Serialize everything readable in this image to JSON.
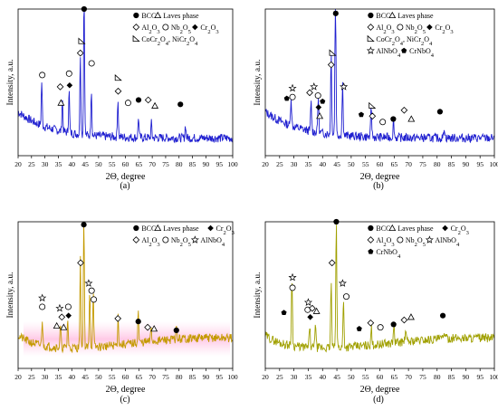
{
  "chart_data": [
    {
      "type": "line",
      "panel_label": "(a)",
      "color": "#1f1fd0",
      "xlabel": "2Θ, degree",
      "ylabel": "Intensity, a.u.",
      "xlim": [
        20,
        100
      ],
      "xticks": [
        20,
        25,
        30,
        35,
        40,
        45,
        50,
        55,
        60,
        65,
        70,
        75,
        80,
        85,
        90,
        95,
        100
      ],
      "ylim": [
        0,
        1
      ],
      "peaks": [
        [
          28.8,
          0.3
        ],
        [
          36.5,
          0.22
        ],
        [
          39.0,
          0.3
        ],
        [
          43.2,
          0.55
        ],
        [
          44.6,
          1.0
        ],
        [
          47.3,
          0.32
        ],
        [
          57.2,
          0.26
        ],
        [
          64.9,
          0.14
        ],
        [
          69.7,
          0.1
        ],
        [
          82.4,
          0.09
        ]
      ],
      "markers": [
        {
          "x": 44.6,
          "y": 1.0,
          "sym": "BCC"
        },
        {
          "x": 29.0,
          "y": 0.55,
          "sym": "Nb2O5"
        },
        {
          "x": 36.0,
          "y": 0.36,
          "sym": "Laves"
        },
        {
          "x": 35.7,
          "y": 0.47,
          "sym": "Al2O3"
        },
        {
          "x": 39.2,
          "y": 0.48,
          "sym": "Cr2O3"
        },
        {
          "x": 39.0,
          "y": 0.56,
          "sym": "Nb2O5"
        },
        {
          "x": 43.2,
          "y": 0.7,
          "sym": "Al2O3"
        },
        {
          "x": 43.7,
          "y": 0.78,
          "sym": "CoCr"
        },
        {
          "x": 47.4,
          "y": 0.63,
          "sym": "Nb2O5"
        },
        {
          "x": 57.3,
          "y": 0.53,
          "sym": "CoCr"
        },
        {
          "x": 57.3,
          "y": 0.44,
          "sym": "Al2O3"
        },
        {
          "x": 61.0,
          "y": 0.36,
          "sym": "Nb2O5"
        },
        {
          "x": 64.9,
          "y": 0.38,
          "sym": "BCC"
        },
        {
          "x": 68.5,
          "y": 0.38,
          "sym": "Al2O3"
        },
        {
          "x": 71.0,
          "y": 0.34,
          "sym": "Laves"
        },
        {
          "x": 80.5,
          "y": 0.35,
          "sym": "BCC"
        }
      ]
    },
    {
      "type": "line",
      "panel_label": "(b)",
      "color": "#1f1fd0",
      "xlabel": "2Θ, degree",
      "ylabel": "Intensity, a.u.",
      "xlim": [
        20,
        100
      ],
      "xticks": [
        20,
        25,
        30,
        35,
        40,
        45,
        50,
        55,
        60,
        65,
        70,
        75,
        80,
        85,
        90,
        95,
        100
      ],
      "ylim": [
        0,
        1
      ],
      "peaks": [
        [
          29.0,
          0.2
        ],
        [
          36.0,
          0.2
        ],
        [
          38.5,
          0.25
        ],
        [
          43.0,
          0.55
        ],
        [
          44.5,
          0.98
        ],
        [
          47.0,
          0.35
        ],
        [
          57.0,
          0.2
        ],
        [
          64.8,
          0.12
        ],
        [
          82.5,
          0.08
        ]
      ],
      "markers": [
        {
          "x": 44.6,
          "y": 0.97,
          "sym": "BCC"
        },
        {
          "x": 43.0,
          "y": 0.62,
          "sym": "Al2O3"
        },
        {
          "x": 43.5,
          "y": 0.7,
          "sym": "CoCr"
        },
        {
          "x": 47.4,
          "y": 0.47,
          "sym": "AlNbO4"
        },
        {
          "x": 29.5,
          "y": 0.46,
          "sym": "AlNbO4"
        },
        {
          "x": 29.5,
          "y": 0.4,
          "sym": "Nb2O5"
        },
        {
          "x": 27.5,
          "y": 0.39,
          "sym": "CrNbO4"
        },
        {
          "x": 35.5,
          "y": 0.43,
          "sym": "Al2O3"
        },
        {
          "x": 37.0,
          "y": 0.47,
          "sym": "AlNbO4"
        },
        {
          "x": 38.4,
          "y": 0.41,
          "sym": "Nb2O5"
        },
        {
          "x": 38.6,
          "y": 0.33,
          "sym": "Cr2O3"
        },
        {
          "x": 40.0,
          "y": 0.37,
          "sym": "CrNbO4"
        },
        {
          "x": 39.0,
          "y": 0.27,
          "sym": "Laves"
        },
        {
          "x": 53.5,
          "y": 0.28,
          "sym": "CrNbO4"
        },
        {
          "x": 57.3,
          "y": 0.34,
          "sym": "CoCr"
        },
        {
          "x": 57.4,
          "y": 0.27,
          "sym": "Al2O3"
        },
        {
          "x": 61.0,
          "y": 0.23,
          "sym": "Nb2O5"
        },
        {
          "x": 64.7,
          "y": 0.25,
          "sym": "BCC"
        },
        {
          "x": 68.5,
          "y": 0.31,
          "sym": "Al2O3"
        },
        {
          "x": 71.0,
          "y": 0.25,
          "sym": "Laves"
        },
        {
          "x": 81.0,
          "y": 0.3,
          "sym": "BCC"
        }
      ]
    },
    {
      "type": "line",
      "panel_label": "(c)",
      "color": "#c49a00",
      "xlabel": "2Θ, degree",
      "ylabel": "Intensity, a.u.",
      "xlim": [
        20,
        100
      ],
      "xticks": [
        20,
        25,
        30,
        35,
        40,
        45,
        50,
        55,
        60,
        65,
        70,
        75,
        80,
        85,
        90,
        95,
        100
      ],
      "ylim": [
        0,
        1
      ],
      "peaks": [
        [
          29.0,
          0.18
        ],
        [
          35.8,
          0.15
        ],
        [
          38.5,
          0.2
        ],
        [
          43.2,
          0.6
        ],
        [
          44.5,
          0.98
        ],
        [
          46.7,
          0.4
        ],
        [
          48.0,
          0.38
        ],
        [
          57.3,
          0.2
        ],
        [
          64.8,
          0.22
        ],
        [
          69.6,
          0.1
        ],
        [
          79.0,
          0.08
        ]
      ],
      "markers": [
        {
          "x": 44.5,
          "y": 0.98,
          "sym": "BCC"
        },
        {
          "x": 43.3,
          "y": 0.72,
          "sym": "Al2O3"
        },
        {
          "x": 46.3,
          "y": 0.58,
          "sym": "AlNbO4"
        },
        {
          "x": 47.4,
          "y": 0.53,
          "sym": "Nb2O5"
        },
        {
          "x": 48.2,
          "y": 0.47,
          "sym": "Nb2O5"
        },
        {
          "x": 29.0,
          "y": 0.48,
          "sym": "AlNbO4"
        },
        {
          "x": 29.0,
          "y": 0.42,
          "sym": "Nb2O5"
        },
        {
          "x": 35.5,
          "y": 0.41,
          "sym": "AlNbO4"
        },
        {
          "x": 36.3,
          "y": 0.35,
          "sym": "Al2O3"
        },
        {
          "x": 38.7,
          "y": 0.42,
          "sym": "Nb2O5"
        },
        {
          "x": 38.8,
          "y": 0.36,
          "sym": "Cr2O3"
        },
        {
          "x": 34.4,
          "y": 0.29,
          "sym": "Laves"
        },
        {
          "x": 37.0,
          "y": 0.28,
          "sym": "Laves"
        },
        {
          "x": 57.2,
          "y": 0.34,
          "sym": "Al2O3"
        },
        {
          "x": 64.8,
          "y": 0.32,
          "sym": "BCC"
        },
        {
          "x": 68.3,
          "y": 0.28,
          "sym": "Al2O3"
        },
        {
          "x": 70.7,
          "y": 0.27,
          "sym": "Laves"
        },
        {
          "x": 79.0,
          "y": 0.26,
          "sym": "BCC"
        }
      ]
    },
    {
      "type": "line",
      "panel_label": "(d)",
      "color": "#a0a000",
      "xlabel": "2Θ, degree",
      "ylabel": "Intensity, a.u.",
      "xlim": [
        20,
        100
      ],
      "xticks": [
        20,
        25,
        30,
        35,
        40,
        45,
        50,
        55,
        60,
        65,
        70,
        75,
        80,
        85,
        90,
        95,
        100
      ],
      "ylim": [
        0,
        1
      ],
      "peaks": [
        [
          29.3,
          0.48
        ],
        [
          35.5,
          0.15
        ],
        [
          37.5,
          0.18
        ],
        [
          43.0,
          0.45
        ],
        [
          44.8,
          0.85
        ],
        [
          47.3,
          0.32
        ],
        [
          57.0,
          0.12
        ],
        [
          64.9,
          0.12
        ],
        [
          69.0,
          0.08
        ],
        [
          82.5,
          0.06
        ]
      ],
      "markers": [
        {
          "x": 44.8,
          "y": 1.0,
          "sym": "BCC"
        },
        {
          "x": 43.3,
          "y": 0.72,
          "sym": "Al2O3"
        },
        {
          "x": 47.0,
          "y": 0.58,
          "sym": "AlNbO4"
        },
        {
          "x": 48.3,
          "y": 0.49,
          "sym": "Nb2O5"
        },
        {
          "x": 29.5,
          "y": 0.62,
          "sym": "AlNbO4"
        },
        {
          "x": 29.5,
          "y": 0.55,
          "sym": "Nb2O5"
        },
        {
          "x": 26.5,
          "y": 0.38,
          "sym": "CrNbO4"
        },
        {
          "x": 35.0,
          "y": 0.45,
          "sym": "AlNbO4"
        },
        {
          "x": 34.8,
          "y": 0.4,
          "sym": "Nb2O5"
        },
        {
          "x": 36.4,
          "y": 0.41,
          "sym": "Al2O3"
        },
        {
          "x": 35.7,
          "y": 0.35,
          "sym": "Cr2O3"
        },
        {
          "x": 37.9,
          "y": 0.39,
          "sym": "Laves"
        },
        {
          "x": 52.8,
          "y": 0.27,
          "sym": "CrNbO4"
        },
        {
          "x": 56.8,
          "y": 0.31,
          "sym": "Al2O3"
        },
        {
          "x": 60.2,
          "y": 0.28,
          "sym": "Nb2O5"
        },
        {
          "x": 64.8,
          "y": 0.3,
          "sym": "BCC"
        },
        {
          "x": 68.5,
          "y": 0.33,
          "sym": "Al2O3"
        },
        {
          "x": 70.9,
          "y": 0.35,
          "sym": "Laves"
        },
        {
          "x": 82.0,
          "y": 0.36,
          "sym": "BCC"
        }
      ]
    }
  ],
  "legends": {
    "a": [
      [
        "BCC",
        "Laves phase"
      ],
      [
        "Al2O3",
        "Nb2O5",
        "Cr2O3"
      ],
      [
        "CoCr2O4, NiCr2O4"
      ]
    ],
    "b": [
      [
        "BCC",
        "Laves phase"
      ],
      [
        "Al2O3",
        "Nb2O5",
        "Cr2O3"
      ],
      [
        "CoCr2O4, NiCr2O4"
      ],
      [
        "AlNbO4",
        "CrNbO4"
      ]
    ],
    "c": [
      [
        "BCC",
        "Laves phase",
        "Cr2O3"
      ],
      [
        "Al2O3",
        "Nb2O5",
        "AlNbO4"
      ]
    ],
    "d": [
      [
        "BCC",
        "Laves phase",
        "Cr2O3"
      ],
      [
        "Al2O3",
        "Nb2O5",
        "AlNbO4"
      ],
      [
        "CrNbO4"
      ]
    ]
  },
  "symbol_map": {
    "BCC": "filled-circle",
    "Laves": "open-triangle",
    "Al2O3": "open-diamond",
    "Nb2O5": "open-circle",
    "Cr2O3": "filled-diamond",
    "CoCr": "half-triangle",
    "AlNbO4": "open-star",
    "CrNbO4": "filled-pentagon"
  }
}
